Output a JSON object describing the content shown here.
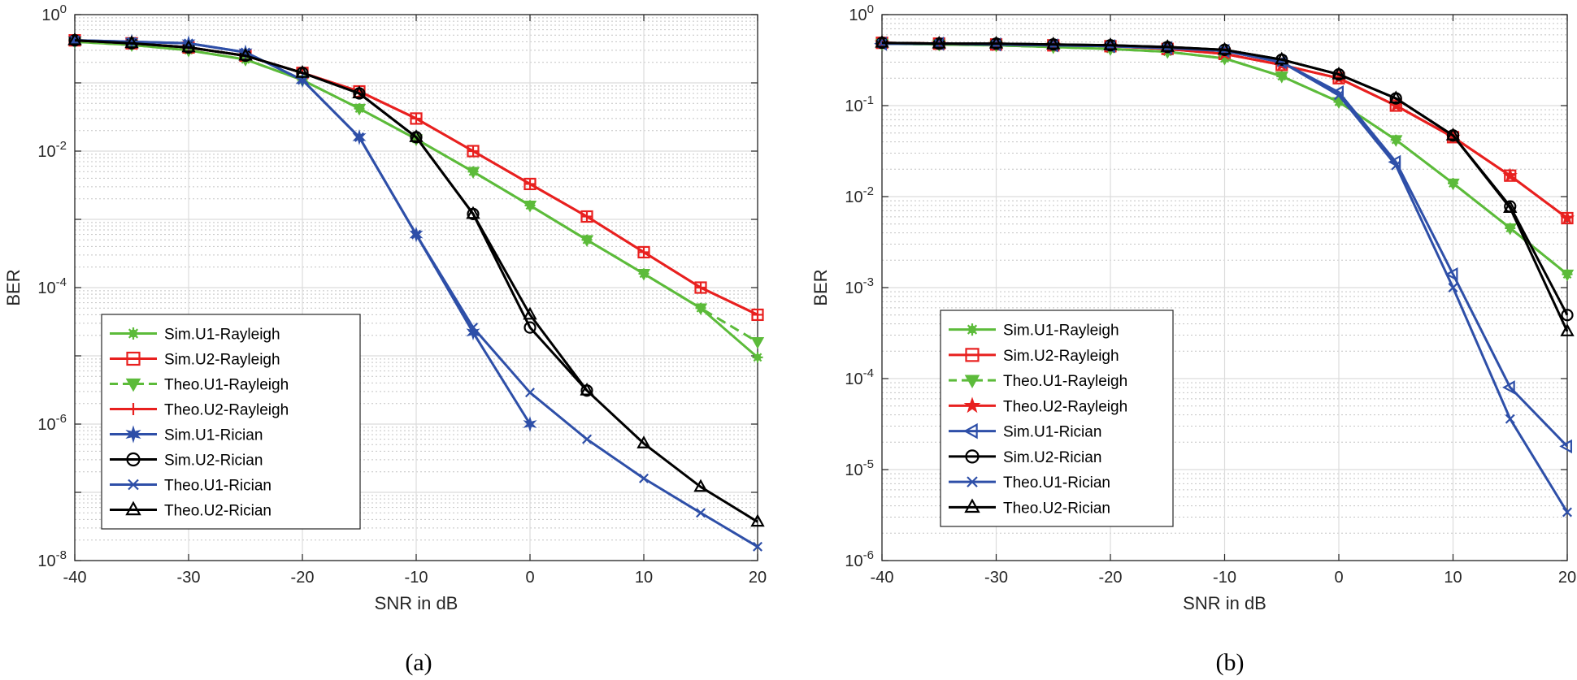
{
  "figure": {
    "captions": [
      "(a)",
      "(b)"
    ]
  },
  "chart_data": [
    {
      "type": "line",
      "panel": "(a)",
      "xlabel": "SNR in dB",
      "ylabel": "BER",
      "yscale": "log",
      "xlim": [
        -40,
        20
      ],
      "ylim_exp": [
        -8,
        0
      ],
      "xticks": [
        "-40",
        "-30",
        "-20",
        "-10",
        "0",
        "10",
        "20"
      ],
      "ytick_labels": [
        {
          "base": "10",
          "exp": "0",
          "value": 0
        },
        {
          "base": "10",
          "exp": "-2",
          "value": -2
        },
        {
          "base": "10",
          "exp": "-4",
          "value": -4
        },
        {
          "base": "10",
          "exp": "-6",
          "value": -6
        },
        {
          "base": "10",
          "exp": "-8",
          "value": -8
        }
      ],
      "grid": true,
      "legend_position": "lower-left",
      "x": [
        -40,
        -35,
        -30,
        -25,
        -20,
        -15,
        -10,
        -5,
        0,
        5,
        10,
        15,
        20
      ],
      "series": [
        {
          "name": "Sim.U1-Rayleigh",
          "color": "#5cbb3a",
          "marker": "asterisk-filled",
          "dash": false,
          "x": [
            -40,
            -35,
            -30,
            -25,
            -20,
            -15,
            -10,
            -5,
            0,
            5,
            10,
            15,
            20
          ],
          "values": [
            0.4,
            0.36,
            0.3,
            0.22,
            0.11,
            0.042,
            0.015,
            0.005,
            0.0016,
            0.0005,
            0.00016,
            5e-05,
            9.5e-06
          ]
        },
        {
          "name": "Sim.U2-Rayleigh",
          "color": "#e8201f",
          "marker": "square",
          "dash": false,
          "x": [
            -40,
            -35,
            -30,
            -25,
            -20,
            -15,
            -10,
            -5,
            0,
            5,
            10,
            15,
            20
          ],
          "values": [
            0.42,
            0.38,
            0.33,
            0.25,
            0.14,
            0.075,
            0.03,
            0.01,
            0.0033,
            0.0011,
            0.00033,
            0.0001,
            4e-05
          ]
        },
        {
          "name": "Theo.U1-Rayleigh",
          "color": "#5cbb3a",
          "marker": "triangle-down",
          "dash": true,
          "x": [
            -40,
            -35,
            -30,
            -25,
            -20,
            -15,
            -10,
            -5,
            0,
            5,
            10,
            15,
            20
          ],
          "values": [
            0.4,
            0.36,
            0.3,
            0.22,
            0.11,
            0.042,
            0.015,
            0.005,
            0.0016,
            0.0005,
            0.00016,
            5e-05,
            1.6e-05
          ]
        },
        {
          "name": "Theo.U2-Rayleigh",
          "color": "#e8201f",
          "marker": "plus",
          "dash": false,
          "x": [
            -40,
            -35,
            -30,
            -25,
            -20,
            -15,
            -10,
            -5,
            0,
            5,
            10,
            15,
            20
          ],
          "values": [
            0.42,
            0.38,
            0.33,
            0.25,
            0.14,
            0.075,
            0.03,
            0.01,
            0.0033,
            0.0011,
            0.00033,
            0.0001,
            4e-05
          ]
        },
        {
          "name": "Sim.U1-Rician",
          "color": "#2e4fa8",
          "marker": "hexagram",
          "dash": false,
          "x": [
            -40,
            -35,
            -30,
            -25,
            -20,
            -15,
            -10,
            -5,
            0
          ],
          "values": [
            0.42,
            0.4,
            0.38,
            0.28,
            0.11,
            0.016,
            0.0006,
            2.2e-05,
            1e-06
          ]
        },
        {
          "name": "Sim.U2-Rician",
          "color": "#000000",
          "marker": "circle",
          "dash": false,
          "x": [
            -40,
            -35,
            -30,
            -25,
            -20,
            -15,
            -10,
            -5,
            0,
            5
          ],
          "values": [
            0.42,
            0.38,
            0.33,
            0.25,
            0.14,
            0.07,
            0.016,
            0.0012,
            2.6e-05,
            3.1e-06
          ]
        },
        {
          "name": "Theo.U1-Rician",
          "color": "#2e4fa8",
          "marker": "x",
          "dash": false,
          "x": [
            -40,
            -35,
            -30,
            -25,
            -20,
            -15,
            -10,
            -5,
            0,
            5,
            10,
            15,
            20
          ],
          "values": [
            0.42,
            0.4,
            0.38,
            0.28,
            0.11,
            0.016,
            0.0006,
            2.6e-05,
            2.9e-06,
            6e-07,
            1.6e-07,
            5e-08,
            1.6e-08
          ]
        },
        {
          "name": "Theo.U2-Rician",
          "color": "#000000",
          "marker": "triangle-up",
          "dash": false,
          "x": [
            -40,
            -35,
            -30,
            -25,
            -20,
            -15,
            -10,
            -5,
            0,
            5,
            10,
            15,
            20
          ],
          "values": [
            0.42,
            0.38,
            0.33,
            0.25,
            0.14,
            0.07,
            0.016,
            0.0012,
            4e-05,
            3.1e-06,
            5.2e-07,
            1.2e-07,
            3.7e-08
          ]
        }
      ]
    },
    {
      "type": "line",
      "panel": "(b)",
      "xlabel": "SNR in dB",
      "ylabel": "BER",
      "yscale": "log",
      "xlim": [
        -40,
        20
      ],
      "ylim_exp": [
        -6,
        0
      ],
      "xticks": [
        "-40",
        "-30",
        "-20",
        "-10",
        "0",
        "10",
        "20"
      ],
      "ytick_labels": [
        {
          "base": "10",
          "exp": "0",
          "value": 0
        },
        {
          "base": "10",
          "exp": "-1",
          "value": -1
        },
        {
          "base": "10",
          "exp": "-2",
          "value": -2
        },
        {
          "base": "10",
          "exp": "-3",
          "value": -3
        },
        {
          "base": "10",
          "exp": "-4",
          "value": -4
        },
        {
          "base": "10",
          "exp": "-5",
          "value": -5
        },
        {
          "base": "10",
          "exp": "-6",
          "value": -6
        }
      ],
      "grid": true,
      "legend_position": "lower-left",
      "series": [
        {
          "name": "Sim.U1-Rayleigh",
          "color": "#5cbb3a",
          "marker": "asterisk-filled",
          "dash": false,
          "x": [
            -40,
            -35,
            -30,
            -25,
            -20,
            -15,
            -10,
            -5,
            0,
            5,
            10,
            15,
            20
          ],
          "values": [
            0.48,
            0.47,
            0.46,
            0.44,
            0.42,
            0.39,
            0.33,
            0.21,
            0.11,
            0.042,
            0.014,
            0.0045,
            0.0014
          ]
        },
        {
          "name": "Sim.U2-Rayleigh",
          "color": "#e8201f",
          "marker": "square",
          "dash": false,
          "x": [
            -40,
            -35,
            -30,
            -25,
            -20,
            -15,
            -10,
            -5,
            0,
            5,
            10,
            15,
            20
          ],
          "values": [
            0.49,
            0.48,
            0.47,
            0.46,
            0.45,
            0.42,
            0.37,
            0.28,
            0.2,
            0.1,
            0.045,
            0.017,
            0.0058
          ]
        },
        {
          "name": "Theo.U1-Rayleigh",
          "color": "#5cbb3a",
          "marker": "triangle-down",
          "dash": true,
          "x": [
            -40,
            -35,
            -30,
            -25,
            -20,
            -15,
            -10,
            -5,
            0,
            5,
            10,
            15,
            20
          ],
          "values": [
            0.48,
            0.47,
            0.46,
            0.44,
            0.42,
            0.39,
            0.33,
            0.21,
            0.11,
            0.042,
            0.014,
            0.0045,
            0.0014
          ]
        },
        {
          "name": "Theo.U2-Rayleigh",
          "color": "#e8201f",
          "marker": "pentagram",
          "dash": false,
          "x": [
            -40,
            -35,
            -30,
            -25,
            -20,
            -15,
            -10,
            -5,
            0,
            5,
            10,
            15,
            20
          ],
          "values": [
            0.49,
            0.48,
            0.47,
            0.46,
            0.45,
            0.42,
            0.37,
            0.28,
            0.2,
            0.1,
            0.045,
            0.017,
            0.0058
          ]
        },
        {
          "name": "Sim.U1-Rician",
          "color": "#2e4fa8",
          "marker": "triangle-left",
          "dash": false,
          "x": [
            -40,
            -35,
            -30,
            -25,
            -20,
            -15,
            -10,
            -5,
            0,
            5,
            10,
            15,
            20
          ],
          "values": [
            0.48,
            0.48,
            0.47,
            0.46,
            0.45,
            0.43,
            0.4,
            0.3,
            0.14,
            0.024,
            0.0014,
            8e-05,
            1.8e-05
          ]
        },
        {
          "name": "Sim.U2-Rician",
          "color": "#000000",
          "marker": "circle",
          "dash": false,
          "x": [
            -40,
            -35,
            -30,
            -25,
            -20,
            -15,
            -10,
            -5,
            0,
            5,
            10,
            15,
            20
          ],
          "values": [
            0.49,
            0.48,
            0.48,
            0.47,
            0.46,
            0.44,
            0.41,
            0.32,
            0.22,
            0.12,
            0.047,
            0.0078,
            0.0005
          ]
        },
        {
          "name": "Theo.U1-Rician",
          "color": "#2e4fa8",
          "marker": "x",
          "dash": false,
          "x": [
            -40,
            -35,
            -30,
            -25,
            -20,
            -15,
            -10,
            -5,
            0,
            5,
            10,
            15,
            20
          ],
          "values": [
            0.48,
            0.48,
            0.47,
            0.46,
            0.45,
            0.43,
            0.4,
            0.3,
            0.13,
            0.022,
            0.001,
            3.6e-05,
            3.4e-06
          ]
        },
        {
          "name": "Theo.U2-Rician",
          "color": "#000000",
          "marker": "triangle-up",
          "dash": false,
          "x": [
            -40,
            -35,
            -30,
            -25,
            -20,
            -15,
            -10,
            -5,
            0,
            5,
            10,
            15,
            20
          ],
          "values": [
            0.49,
            0.48,
            0.48,
            0.47,
            0.46,
            0.44,
            0.41,
            0.32,
            0.22,
            0.12,
            0.047,
            0.0075,
            0.00033
          ]
        }
      ]
    }
  ]
}
